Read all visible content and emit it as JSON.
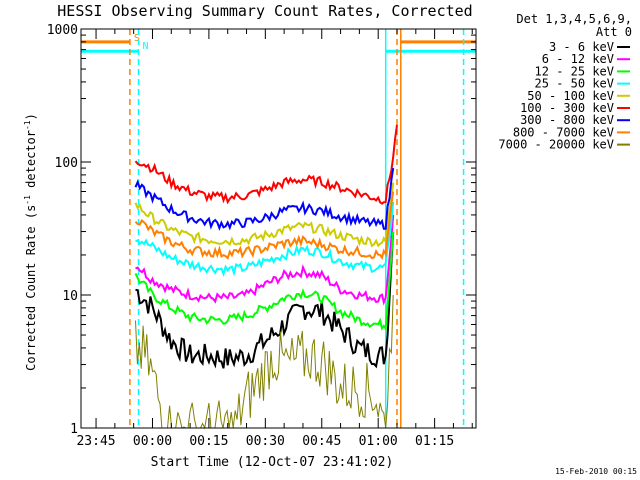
{
  "chart_data": {
    "type": "line",
    "title": "HESSI Observing Summary Count Rates, Corrected",
    "xlabel": "Start Time (12-Oct-07 23:41:02)",
    "ylabel": "Corrected Count Rate (s⁻¹ detector⁻¹)",
    "ylabel_parts": {
      "main": "Corrected Count Rate (s",
      "exp1": "-1",
      "mid": " detector",
      "exp2": "-1",
      "end": ")"
    },
    "yscale": "log",
    "ylim": [
      1,
      1000
    ],
    "xlim_minutes": [
      -19,
      86
    ],
    "x_ticks": [
      {
        "label": "23:45",
        "value": -15
      },
      {
        "label": "00:00",
        "value": 0
      },
      {
        "label": "00:15",
        "value": 15
      },
      {
        "label": "00:30",
        "value": 30
      },
      {
        "label": "00:45",
        "value": 45
      },
      {
        "label": "01:00",
        "value": 60
      },
      {
        "label": "01:15",
        "value": 75
      }
    ],
    "y_ticks": [
      {
        "label": "1",
        "value": 1
      },
      {
        "label": "10",
        "value": 10
      },
      {
        "label": "100",
        "value": 100
      },
      {
        "label": "1000",
        "value": 1000
      }
    ],
    "x_units": "minutes after 00:00",
    "legend": {
      "position": "right",
      "header_lines": [
        "Det 1,3,4,5,6,9,",
        "Att 0"
      ]
    },
    "series": [
      {
        "name": "3 - 6 keV",
        "color": "#000000",
        "x": [
          -4.5,
          0,
          5,
          10,
          15,
          20,
          25,
          30,
          35,
          40,
          45,
          50,
          55,
          60,
          62,
          64
        ],
        "y": [
          11,
          8,
          4.5,
          3.5,
          3.5,
          3.3,
          3.5,
          4.5,
          6,
          8,
          7.5,
          5.5,
          4,
          3.5,
          3.5,
          30
        ]
      },
      {
        "name": "6 - 12 keV",
        "color": "#ff00ff",
        "x": [
          -4.5,
          0,
          5,
          10,
          15,
          20,
          25,
          30,
          35,
          40,
          45,
          50,
          55,
          60,
          62,
          64
        ],
        "y": [
          17,
          13,
          11,
          10,
          9.5,
          9.5,
          10,
          12,
          14,
          15,
          14,
          11,
          10,
          9.5,
          9.5,
          40
        ]
      },
      {
        "name": "12 - 25 keV",
        "color": "#00ff00",
        "x": [
          -4.5,
          0,
          5,
          10,
          15,
          20,
          25,
          30,
          35,
          40,
          45,
          50,
          55,
          60,
          62,
          64
        ],
        "y": [
          14,
          10,
          8,
          6.8,
          6.5,
          6.5,
          7,
          8,
          9.5,
          10.5,
          9.5,
          7.5,
          6.5,
          6,
          6,
          30
        ]
      },
      {
        "name": "25 - 50 keV",
        "color": "#00ffff",
        "x": [
          -4.5,
          0,
          5,
          10,
          15,
          20,
          25,
          30,
          35,
          40,
          45,
          50,
          55,
          60,
          62,
          64
        ],
        "y": [
          27,
          23,
          19,
          17,
          16,
          15.5,
          16,
          18,
          20,
          22,
          21,
          18,
          16.5,
          16,
          16,
          50
        ]
      },
      {
        "name": "50 - 100 keV",
        "color": "#cccc00",
        "x": [
          -4.5,
          0,
          5,
          10,
          15,
          20,
          25,
          30,
          35,
          40,
          45,
          50,
          55,
          60,
          62,
          64
        ],
        "y": [
          48,
          38,
          31,
          27.5,
          26,
          25.5,
          26,
          28,
          31,
          33,
          31,
          28,
          26,
          25,
          25,
          70
        ]
      },
      {
        "name": "100 - 300 keV",
        "color": "#ff0000",
        "x": [
          -4.5,
          0,
          5,
          10,
          15,
          20,
          25,
          30,
          35,
          40,
          45,
          50,
          55,
          60,
          62,
          64,
          65
        ],
        "y": [
          105,
          90,
          70,
          60,
          55,
          54,
          56,
          62,
          70,
          74,
          71,
          64,
          58,
          53,
          52,
          110,
          190
        ]
      },
      {
        "name": "300 - 800 keV",
        "color": "#0000ff",
        "x": [
          -4.5,
          0,
          5,
          10,
          15,
          20,
          25,
          30,
          35,
          40,
          45,
          50,
          55,
          60,
          62,
          64
        ],
        "y": [
          67,
          55,
          44,
          38,
          35,
          34,
          35,
          38,
          43,
          45,
          43,
          39,
          36,
          34,
          34,
          90
        ]
      },
      {
        "name": "800 - 7000 keV",
        "color": "#ff8000",
        "x": [
          -4.5,
          0,
          5,
          10,
          15,
          20,
          25,
          30,
          35,
          40,
          45,
          50,
          55,
          60,
          62,
          64
        ],
        "y": [
          38,
          30,
          25,
          22,
          21,
          20.5,
          21,
          22.5,
          24.5,
          25.5,
          24,
          22,
          21,
          20,
          20,
          60
        ]
      },
      {
        "name": "7000 - 20000 keV",
        "color": "#808000",
        "x": [
          -4.5,
          -2,
          0,
          2,
          4,
          10,
          15,
          22,
          24,
          28,
          32,
          36,
          42,
          46,
          50,
          55,
          59,
          62,
          64
        ],
        "y": [
          4,
          3.5,
          2.5,
          1.5,
          1,
          1,
          1,
          1,
          1.5,
          2.2,
          3.5,
          3,
          3.5,
          3,
          2,
          2,
          1.8,
          1,
          10
        ]
      }
    ],
    "vertical_markers": [
      {
        "label": "S",
        "color": "#ff8000",
        "x": -6,
        "style": "dashed"
      },
      {
        "label": "N",
        "color": "#00ffff",
        "x": -3.7,
        "style": "dashed"
      },
      {
        "label": "",
        "color": "#ff8000",
        "x": 66,
        "style": "solid"
      },
      {
        "label": "",
        "color": "#00ffff",
        "x": 62,
        "style": "solid"
      },
      {
        "label": "",
        "color": "#ff8000",
        "x": 65,
        "style": "dashed"
      },
      {
        "label": "",
        "color": "#00ffff",
        "x": 82.7,
        "style": "dashed"
      }
    ],
    "shaded_intervals": [
      {
        "color": "#ff8000",
        "x0": -19,
        "x1": -6,
        "level": 800
      },
      {
        "color": "#00ffff",
        "x0": -19,
        "x1": -3.7,
        "level": 680
      },
      {
        "color": "#ff8000",
        "x0": 66,
        "x1": 86,
        "level": 800
      },
      {
        "color": "#00ffff",
        "x0": 62,
        "x1": 86,
        "level": 680
      }
    ],
    "footer_timestamp": "15-Feb-2010 00:15"
  }
}
